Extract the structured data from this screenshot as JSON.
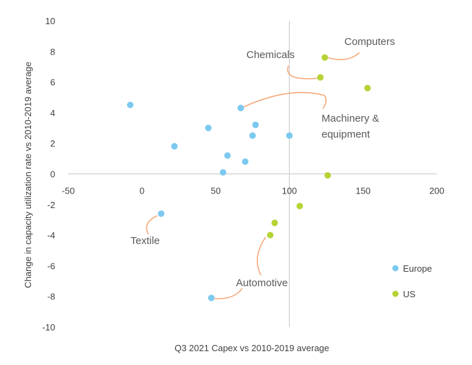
{
  "chart_data": {
    "type": "scatter",
    "title": "",
    "xlabel": "Q3 2021 Capex vs 2010-2019 average",
    "ylabel": "Change in capacity utilization rate vs 2010-2019 average",
    "xlim": [
      -50,
      200
    ],
    "ylim": [
      -10,
      10
    ],
    "x_ticks": [
      -50,
      0,
      50,
      100,
      150,
      200
    ],
    "y_ticks": [
      -10,
      -8,
      -6,
      -4,
      -2,
      0,
      2,
      4,
      6,
      8,
      10
    ],
    "grid": false,
    "legend_position": "right",
    "series": [
      {
        "name": "Europe",
        "color": "#7cc9f0",
        "points": [
          {
            "x": -8,
            "y": 4.5
          },
          {
            "x": 22,
            "y": 1.8
          },
          {
            "x": 45,
            "y": 3.0
          },
          {
            "x": 58,
            "y": 1.2
          },
          {
            "x": 55,
            "y": 0.1
          },
          {
            "x": 67,
            "y": 4.3
          },
          {
            "x": 70,
            "y": 0.8
          },
          {
            "x": 75,
            "y": 2.5
          },
          {
            "x": 77,
            "y": 3.2
          },
          {
            "x": 100,
            "y": 2.5
          },
          {
            "x": 13,
            "y": -2.6
          },
          {
            "x": 47,
            "y": -8.1
          }
        ]
      },
      {
        "name": "US",
        "color": "#b5d335",
        "points": [
          {
            "x": 124,
            "y": 7.6
          },
          {
            "x": 121,
            "y": 6.3
          },
          {
            "x": 153,
            "y": 5.6
          },
          {
            "x": 126,
            "y": -0.1
          },
          {
            "x": 107,
            "y": -2.1
          },
          {
            "x": 90,
            "y": -3.2
          },
          {
            "x": 87,
            "y": -4.0
          }
        ]
      }
    ],
    "annotations": [
      {
        "text": "Computers",
        "color": "#f5a97a"
      },
      {
        "text": "Chemicals",
        "color": "#f5a97a"
      },
      {
        "text": "Machinery &",
        "color": "#f5a97a"
      },
      {
        "text": "equipment",
        "color": "#f5a97a"
      },
      {
        "text": "Textile",
        "color": "#f5a97a"
      },
      {
        "text": "Automotive",
        "color": "#f5a97a"
      }
    ]
  }
}
